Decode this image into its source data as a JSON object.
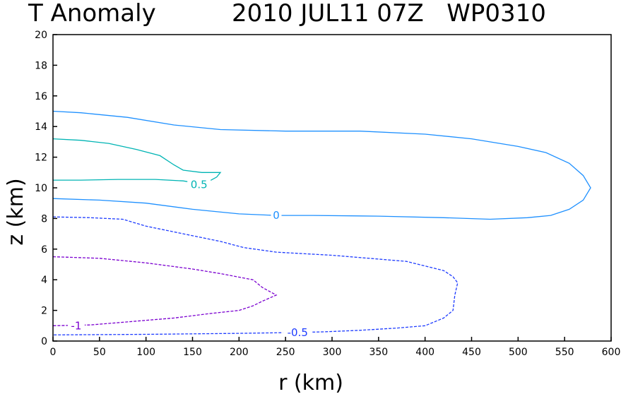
{
  "chart_data": {
    "type": "line",
    "subtype": "contour",
    "title_left": "T Anomaly",
    "title_right": "2010 JUL11 07Z   WP0310",
    "xlabel": "r (km)",
    "ylabel": "z (km)",
    "xlim": [
      0,
      600
    ],
    "ylim": [
      0,
      20
    ],
    "xticks": [
      "0",
      "50",
      "100",
      "150",
      "200",
      "250",
      "300",
      "350",
      "400",
      "450",
      "500",
      "550",
      "600"
    ],
    "yticks": [
      "0",
      "2",
      "4",
      "6",
      "8",
      "10",
      "12",
      "14",
      "16",
      "18",
      "20"
    ],
    "grid": false,
    "legend": "none",
    "contours": [
      {
        "level": "0",
        "color": "#1e90ff",
        "dash": "solid",
        "label_at": [
          240,
          8.2
        ],
        "points": [
          [
            0,
            15
          ],
          [
            30,
            14.9
          ],
          [
            80,
            14.6
          ],
          [
            130,
            14.1
          ],
          [
            180,
            13.8
          ],
          [
            250,
            13.7
          ],
          [
            330,
            13.7
          ],
          [
            400,
            13.5
          ],
          [
            450,
            13.2
          ],
          [
            500,
            12.7
          ],
          [
            530,
            12.3
          ],
          [
            555,
            11.6
          ],
          [
            570,
            10.8
          ],
          [
            578,
            10.0
          ],
          [
            570,
            9.2
          ],
          [
            555,
            8.6
          ],
          [
            535,
            8.2
          ],
          [
            510,
            8.05
          ],
          [
            470,
            7.95
          ],
          [
            420,
            8.05
          ],
          [
            350,
            8.15
          ],
          [
            280,
            8.2
          ],
          [
            240,
            8.2
          ],
          [
            200,
            8.3
          ],
          [
            150,
            8.6
          ],
          [
            100,
            9.0
          ],
          [
            50,
            9.2
          ],
          [
            0,
            9.3
          ]
        ]
      },
      {
        "level": "0.5",
        "color": "#00b4b4",
        "dash": "solid",
        "label_at": [
          157,
          10.2
        ],
        "points": [
          [
            0,
            13.2
          ],
          [
            30,
            13.1
          ],
          [
            60,
            12.9
          ],
          [
            90,
            12.5
          ],
          [
            115,
            12.1
          ],
          [
            130,
            11.5
          ],
          [
            140,
            11.15
          ],
          [
            160,
            11.0
          ],
          [
            180,
            11.0
          ],
          [
            176,
            10.7
          ],
          [
            170,
            10.5
          ],
          [
            160,
            10.25
          ],
          [
            140,
            10.45
          ],
          [
            110,
            10.55
          ],
          [
            70,
            10.55
          ],
          [
            30,
            10.5
          ],
          [
            0,
            10.5
          ]
        ]
      },
      {
        "level": "-0.5",
        "color": "#1e3cff",
        "dash": "dashed",
        "label_at": [
          263,
          0.55
        ],
        "points": [
          [
            0,
            8.1
          ],
          [
            40,
            8.05
          ],
          [
            75,
            7.95
          ],
          [
            100,
            7.5
          ],
          [
            140,
            7.0
          ],
          [
            180,
            6.5
          ],
          [
            205,
            6.1
          ],
          [
            240,
            5.8
          ],
          [
            300,
            5.6
          ],
          [
            380,
            5.2
          ],
          [
            420,
            4.6
          ],
          [
            430,
            4.2
          ],
          [
            435,
            3.8
          ],
          [
            432,
            3.0
          ],
          [
            430,
            2.0
          ],
          [
            420,
            1.5
          ],
          [
            400,
            1.0
          ],
          [
            370,
            0.85
          ],
          [
            330,
            0.7
          ],
          [
            290,
            0.6
          ],
          [
            250,
            0.55
          ],
          [
            200,
            0.5
          ],
          [
            150,
            0.47
          ],
          [
            100,
            0.44
          ],
          [
            50,
            0.42
          ],
          [
            0,
            0.4
          ]
        ]
      },
      {
        "level": "-1",
        "color": "#7b00d0",
        "dash": "dashed",
        "label_at": [
          25,
          1.0
        ],
        "points": [
          [
            0,
            5.5
          ],
          [
            50,
            5.4
          ],
          [
            100,
            5.1
          ],
          [
            150,
            4.7
          ],
          [
            180,
            4.4
          ],
          [
            215,
            4.0
          ],
          [
            225,
            3.5
          ],
          [
            240,
            3.0
          ],
          [
            225,
            2.6
          ],
          [
            215,
            2.3
          ],
          [
            200,
            2.0
          ],
          [
            170,
            1.8
          ],
          [
            130,
            1.5
          ],
          [
            80,
            1.25
          ],
          [
            40,
            1.05
          ],
          [
            0,
            1.0
          ]
        ]
      }
    ]
  }
}
